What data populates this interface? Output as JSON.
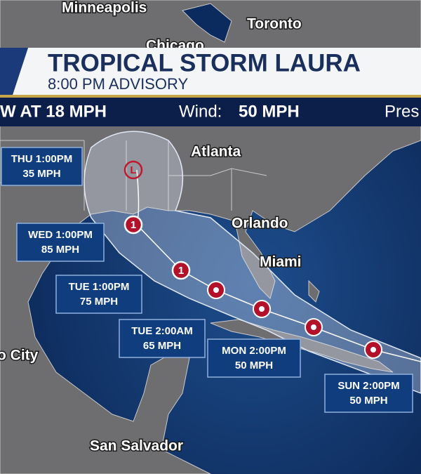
{
  "header": {
    "title": "TROPICAL STORM LAURA",
    "subtitle": "8:00 PM ADVISORY"
  },
  "info_bar": {
    "motion": "W AT 18 MPH",
    "wind_label": "Wind:",
    "wind_value": "50 MPH",
    "pressure_label": "Pres"
  },
  "cities": [
    "Minneapolis",
    "Toronto",
    "Chicago",
    "Atlanta",
    "Orlando",
    "Miami",
    "o City",
    "San Salvador"
  ],
  "forecast": [
    {
      "time": "THU 1:00PM",
      "wind": "35 MPH"
    },
    {
      "time": "WED 1:00PM",
      "wind": "85 MPH"
    },
    {
      "time": "TUE 1:00PM",
      "wind": "75 MPH"
    },
    {
      "time": "TUE 2:00AM",
      "wind": "65 MPH"
    },
    {
      "time": "MON 2:00PM",
      "wind": "50 MPH"
    },
    {
      "time": "SUN 2:00PM",
      "wind": "50 MPH"
    }
  ],
  "storm_markers": [
    "L",
    "1",
    "1"
  ]
}
